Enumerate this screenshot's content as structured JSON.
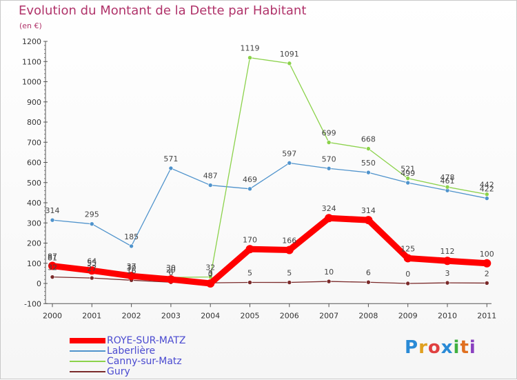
{
  "title": "Evolution du Montant de la Dette par Habitant",
  "subtitle": "(en €)",
  "logo_text": "Proxiti",
  "chart_data": {
    "type": "line",
    "categories": [
      "2000",
      "2001",
      "2002",
      "2003",
      "2004",
      "2005",
      "2006",
      "2007",
      "2008",
      "2009",
      "2010",
      "2011"
    ],
    "ylim": [
      -100,
      1200
    ],
    "yticks": [
      -100,
      0,
      100,
      200,
      300,
      400,
      500,
      600,
      700,
      800,
      900,
      1000,
      1100,
      1200
    ],
    "grid": false,
    "legend_position": "bottom-left",
    "series": [
      {
        "name": "ROYE-SUR-MATZ",
        "color": "#ff0000",
        "values": [
          87,
          64,
          37,
          20,
          0,
          170,
          166,
          324,
          314,
          125,
          112,
          100
        ]
      },
      {
        "name": "Laberlière",
        "color": "#4f93cc",
        "values": [
          314,
          295,
          185,
          571,
          487,
          469,
          597,
          570,
          550,
          499,
          461,
          422
        ]
      },
      {
        "name": "Canny-sur-Matz",
        "color": "#8bd24a",
        "values": [
          81,
          55,
          30,
          30,
          32,
          1119,
          1091,
          699,
          668,
          521,
          478,
          442
        ]
      },
      {
        "name": "Gury",
        "color": "#7a2a2a",
        "values": [
          32,
          27,
          16,
          6,
          3,
          5,
          5,
          10,
          6,
          0,
          3,
          2
        ]
      }
    ]
  }
}
